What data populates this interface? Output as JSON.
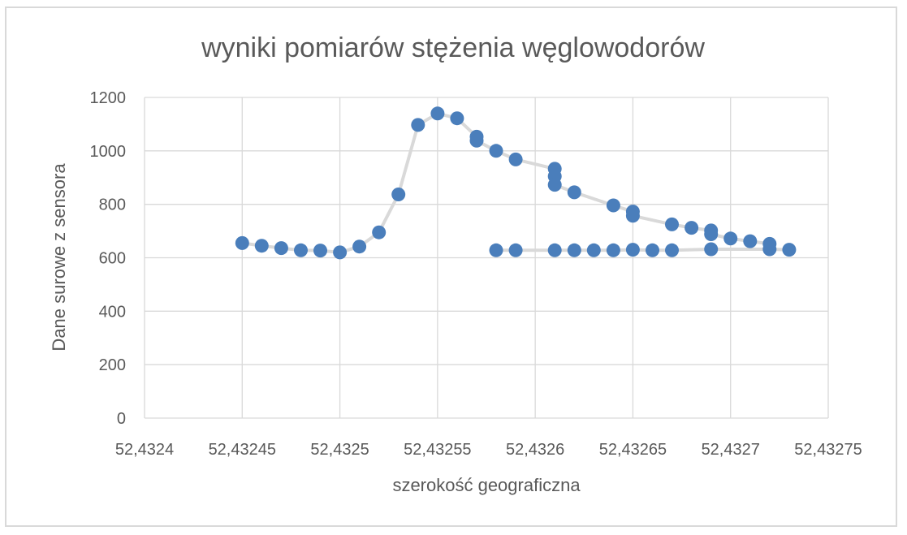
{
  "chart_data": {
    "type": "scatter",
    "title": "wyniki pomiarów stężenia węglowodorów",
    "xlabel": "szerokość geograficzna",
    "ylabel": "Dane surowe z sensora",
    "xlim": [
      52.4324,
      52.43275
    ],
    "ylim": [
      0,
      1200
    ],
    "x_ticks": [
      52.4324,
      52.43245,
      52.4325,
      52.43255,
      52.4326,
      52.43265,
      52.4327,
      52.43275
    ],
    "x_tick_labels": [
      "52,4324",
      "52,43245",
      "52,4325",
      "52,43255",
      "52,4326",
      "52,43265",
      "52,4327",
      "52,43275"
    ],
    "y_ticks": [
      0,
      200,
      400,
      600,
      800,
      1000,
      1200
    ],
    "y_tick_labels": [
      "0",
      "200",
      "400",
      "600",
      "800",
      "1000",
      "1200"
    ],
    "grid": true,
    "colors": {
      "marker": "#4a7ebb",
      "line": "#d9d9d9",
      "grid": "#d9d9d9",
      "text": "#595959"
    },
    "series": [
      {
        "points": [
          [
            52.43273,
            630
          ],
          [
            52.43272,
            632
          ],
          [
            52.43269,
            632
          ],
          [
            52.43267,
            628
          ],
          [
            52.43266,
            628
          ],
          [
            52.43265,
            630
          ],
          [
            52.43264,
            628
          ],
          [
            52.43263,
            628
          ],
          [
            52.43262,
            628
          ],
          [
            52.43261,
            628
          ],
          [
            52.43259,
            628
          ],
          [
            52.43258,
            628
          ]
        ]
      },
      {
        "points": [
          [
            52.43245,
            655
          ],
          [
            52.43246,
            645
          ],
          [
            52.43247,
            636
          ],
          [
            52.43248,
            628
          ],
          [
            52.43249,
            627
          ],
          [
            52.4325,
            620
          ],
          [
            52.43251,
            642
          ],
          [
            52.43252,
            695
          ],
          [
            52.43253,
            837
          ],
          [
            52.43254,
            1097
          ],
          [
            52.43255,
            1140
          ],
          [
            52.43256,
            1122
          ],
          [
            52.43257,
            1053
          ],
          [
            52.43257,
            1038
          ],
          [
            52.43258,
            1000
          ],
          [
            52.43259,
            968
          ],
          [
            52.43261,
            933
          ],
          [
            52.43261,
            905
          ],
          [
            52.43261,
            873
          ],
          [
            52.43262,
            845
          ],
          [
            52.43264,
            796
          ],
          [
            52.43265,
            773
          ],
          [
            52.43265,
            757
          ],
          [
            52.43267,
            725
          ],
          [
            52.43268,
            712
          ],
          [
            52.43269,
            702
          ],
          [
            52.43269,
            688
          ],
          [
            52.4327,
            672
          ],
          [
            52.43271,
            662
          ],
          [
            52.43272,
            652
          ]
        ]
      }
    ]
  }
}
